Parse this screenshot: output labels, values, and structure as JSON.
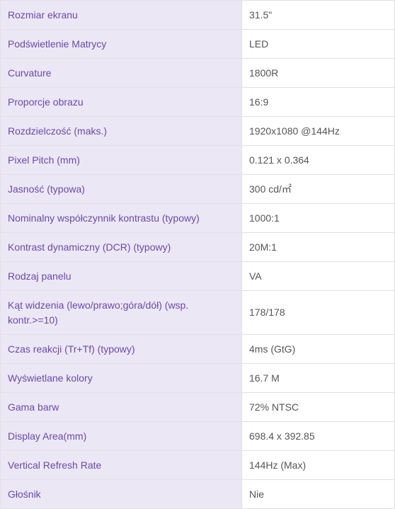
{
  "colors": {
    "label_background": "#ebe7f4",
    "label_text": "#6a4aa8",
    "value_text": "#555555",
    "border": "#e3e0e8"
  },
  "specs": [
    {
      "label": "Rozmiar ekranu",
      "value": "31.5\""
    },
    {
      "label": "Podświetlenie Matrycy",
      "value": "LED"
    },
    {
      "label": "Curvature",
      "value": "1800R"
    },
    {
      "label": "Proporcje obrazu",
      "value": "16:9"
    },
    {
      "label": "Rozdzielczość (maks.)",
      "value": "1920x1080 @144Hz"
    },
    {
      "label": "Pixel Pitch (mm)",
      "value": "0.121 x 0.364"
    },
    {
      "label": "Jasność (typowa)",
      "value": "300 cd/㎡"
    },
    {
      "label": "Nominalny współczynnik kontrastu (typowy)",
      "value": "1000:1"
    },
    {
      "label": "Kontrast dynamiczny (DCR) (typowy)",
      "value": "20M:1"
    },
    {
      "label": "Rodzaj panelu",
      "value": "VA"
    },
    {
      "label": "Kąt widzenia (lewo/prawo;góra/dół) (wsp. kontr.>=10)",
      "value": "178/178"
    },
    {
      "label": "Czas reakcji (Tr+Tf) (typowy)",
      "value": "4ms (GtG)"
    },
    {
      "label": "Wyświetlane kolory",
      "value": "16.7 M"
    },
    {
      "label": "Gama barw",
      "value": "72% NTSC"
    },
    {
      "label": "Display Area(mm)",
      "value": "698.4 x 392.85"
    },
    {
      "label": "Vertical Refresh Rate",
      "value": "144Hz (Max)"
    },
    {
      "label": "Głośnik",
      "value": "Nie"
    }
  ]
}
